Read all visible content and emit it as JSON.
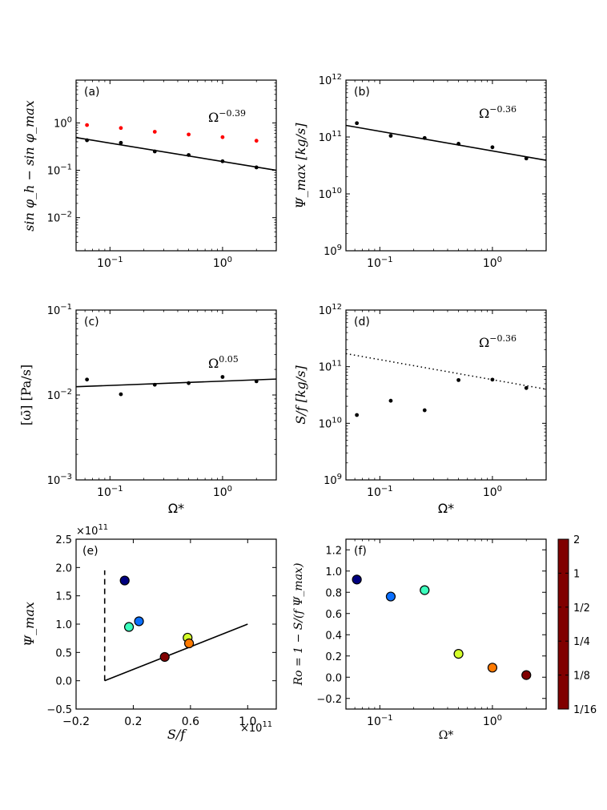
{
  "chart_data": [
    {
      "id": "a",
      "type": "scatter",
      "panel_label": "(a)",
      "ylabel": "sin φ_h − sin φ_max",
      "xlabel": "",
      "xscale": "log",
      "yscale": "log",
      "xlim": [
        0.05,
        3
      ],
      "ylim": [
        0.002,
        8
      ],
      "x_ticks": [
        {
          "v": 0.1,
          "b": "10",
          "e": "−1"
        },
        {
          "v": 1,
          "b": "10",
          "e": "0"
        }
      ],
      "y_ticks": [
        {
          "v": 0.01,
          "b": "10",
          "e": "−2"
        },
        {
          "v": 0.1,
          "b": "10",
          "e": "−1"
        },
        {
          "v": 1,
          "b": "10",
          "e": "0"
        }
      ],
      "annotation": {
        "b": "Ω",
        "e": "−0.39"
      },
      "series": [
        {
          "color": "#ff0000",
          "x": [
            0.0625,
            0.125,
            0.25,
            0.5,
            1,
            2
          ],
          "y": [
            0.9,
            0.78,
            0.65,
            0.57,
            0.5,
            0.42
          ]
        },
        {
          "color": "#000000",
          "x": [
            0.0625,
            0.125,
            0.25,
            0.5,
            1,
            2
          ],
          "y": [
            0.43,
            0.38,
            0.25,
            0.21,
            0.155,
            0.115
          ]
        }
      ],
      "fit_line": {
        "style": "solid",
        "x": [
          0.05,
          3
        ],
        "y": [
          0.49,
          0.1
        ]
      }
    },
    {
      "id": "b",
      "type": "scatter",
      "panel_label": "(b)",
      "ylabel": "Ψ_max [kg/s]",
      "xlabel": "",
      "xscale": "log",
      "yscale": "log",
      "xlim": [
        0.05,
        3
      ],
      "ylim": [
        1000000000.0,
        1000000000000.0
      ],
      "x_ticks": [
        {
          "v": 0.1,
          "b": "10",
          "e": "−1"
        },
        {
          "v": 1,
          "b": "10",
          "e": "0"
        }
      ],
      "y_ticks": [
        {
          "v": 1000000000.0,
          "b": "10",
          "e": "9"
        },
        {
          "v": 10000000000.0,
          "b": "10",
          "e": "10"
        },
        {
          "v": 100000000000.0,
          "b": "10",
          "e": "11"
        },
        {
          "v": 1000000000000.0,
          "b": "10",
          "e": "12"
        }
      ],
      "annotation": {
        "b": "Ω",
        "e": "−0.36"
      },
      "series": [
        {
          "color": "#000000",
          "x": [
            0.0625,
            0.125,
            0.25,
            0.5,
            1,
            2
          ],
          "y": [
            175000000000.0,
            105000000000.0,
            96000000000.0,
            76000000000.0,
            66000000000.0,
            42000000000.0
          ]
        }
      ],
      "fit_line": {
        "style": "solid",
        "x": [
          0.05,
          3
        ],
        "y": [
          160000000000.0,
          39000000000.0
        ]
      }
    },
    {
      "id": "c",
      "type": "scatter",
      "panel_label": "(c)",
      "ylabel": "[ω̄] [Pa/s]",
      "xlabel": "Ω*",
      "xscale": "log",
      "yscale": "log",
      "xlim": [
        0.05,
        3
      ],
      "ylim": [
        0.001,
        0.1
      ],
      "x_ticks": [
        {
          "v": 0.1,
          "b": "10",
          "e": "−1"
        },
        {
          "v": 1,
          "b": "10",
          "e": "0"
        }
      ],
      "y_ticks": [
        {
          "v": 0.001,
          "b": "10",
          "e": "−3"
        },
        {
          "v": 0.01,
          "b": "10",
          "e": "−2"
        },
        {
          "v": 0.1,
          "b": "10",
          "e": "−1"
        }
      ],
      "annotation": {
        "b": "Ω",
        "e": "0.05"
      },
      "series": [
        {
          "color": "#000000",
          "x": [
            0.0625,
            0.125,
            0.25,
            0.5,
            1,
            2
          ],
          "y": [
            0.0152,
            0.0102,
            0.0132,
            0.0138,
            0.0163,
            0.0145
          ]
        }
      ],
      "fit_line": {
        "style": "solid",
        "x": [
          0.05,
          3
        ],
        "y": [
          0.0125,
          0.0154
        ]
      }
    },
    {
      "id": "d",
      "type": "scatter",
      "panel_label": "(d)",
      "ylabel": "S/f [kg/s]",
      "xlabel": "Ω*",
      "xscale": "log",
      "yscale": "log",
      "xlim": [
        0.05,
        3
      ],
      "ylim": [
        1000000000.0,
        1000000000000.0
      ],
      "x_ticks": [
        {
          "v": 0.1,
          "b": "10",
          "e": "−1"
        },
        {
          "v": 1,
          "b": "10",
          "e": "0"
        }
      ],
      "y_ticks": [
        {
          "v": 1000000000.0,
          "b": "10",
          "e": "9"
        },
        {
          "v": 10000000000.0,
          "b": "10",
          "e": "10"
        },
        {
          "v": 100000000000.0,
          "b": "10",
          "e": "11"
        },
        {
          "v": 1000000000000.0,
          "b": "10",
          "e": "12"
        }
      ],
      "annotation": {
        "b": "Ω",
        "e": "−0.36"
      },
      "series": [
        {
          "color": "#000000",
          "x": [
            0.0625,
            0.125,
            0.25,
            0.5,
            1,
            2
          ],
          "y": [
            14000000000.0,
            25000000000.0,
            17000000000.0,
            58000000000.0,
            59000000000.0,
            42000000000.0
          ]
        }
      ],
      "fit_line": {
        "style": "dotted",
        "x": [
          0.05,
          3
        ],
        "y": [
          170000000000.0,
          40000000000.0
        ]
      }
    },
    {
      "id": "e",
      "type": "scatter",
      "panel_label": "(e)",
      "ylabel": "Ψ_max",
      "xlabel": "S/f",
      "xscale": "linear",
      "yscale": "linear",
      "xlim": [
        -0.2,
        1.2
      ],
      "ylim": [
        -0.5,
        2.5
      ],
      "x_ticks": [
        {
          "v": -0.2,
          "t": "−0.2"
        },
        {
          "v": 0.2,
          "t": "0.2"
        },
        {
          "v": 0.6,
          "t": "0.6"
        },
        {
          "v": 1.0,
          "t": "1.0"
        }
      ],
      "y_ticks": [
        {
          "v": -0.5,
          "t": "−0.5"
        },
        {
          "v": 0.0,
          "t": "0.0"
        },
        {
          "v": 0.5,
          "t": "0.5"
        },
        {
          "v": 1.0,
          "t": "1.0"
        },
        {
          "v": 1.5,
          "t": "1.5"
        },
        {
          "v": 2.0,
          "t": "2.0"
        },
        {
          "v": 2.5,
          "t": "2.5"
        }
      ],
      "x_multiplier": {
        "b": "×10",
        "e": "11"
      },
      "y_multiplier": {
        "b": "×10",
        "e": "11"
      },
      "reference_lines": [
        {
          "style": "solid",
          "x": [
            0,
            1.0
          ],
          "y": [
            0,
            1.0
          ]
        },
        {
          "style": "dashed",
          "x": [
            0,
            0
          ],
          "y": [
            0,
            1.95
          ]
        }
      ],
      "points": [
        {
          "x": 0.14,
          "y": 1.77,
          "color": "#00007f"
        },
        {
          "x": 0.17,
          "y": 0.95,
          "color": "#3cffbd"
        },
        {
          "x": 0.24,
          "y": 1.05,
          "color": "#0a6fff"
        },
        {
          "x": 0.58,
          "y": 0.76,
          "color": "#d4ff2a"
        },
        {
          "x": 0.59,
          "y": 0.66,
          "color": "#ff7a00"
        },
        {
          "x": 0.42,
          "y": 0.42,
          "color": "#800000"
        }
      ]
    },
    {
      "id": "f",
      "type": "scatter",
      "panel_label": "(f)",
      "ylabel": "Ro = 1 − S/(f Ψ_max)",
      "xlabel": "Ω*",
      "xscale": "log",
      "yscale": "linear",
      "xlim": [
        0.05,
        3
      ],
      "ylim": [
        -0.3,
        1.3
      ],
      "x_ticks": [
        {
          "v": 0.1,
          "b": "10",
          "e": "−1"
        },
        {
          "v": 1,
          "b": "10",
          "e": "0"
        }
      ],
      "y_ticks": [
        {
          "v": -0.2,
          "t": "−0.2"
        },
        {
          "v": 0.0,
          "t": "0.0"
        },
        {
          "v": 0.2,
          "t": "0.2"
        },
        {
          "v": 0.4,
          "t": "0.4"
        },
        {
          "v": 0.6,
          "t": "0.6"
        },
        {
          "v": 0.8,
          "t": "0.8"
        },
        {
          "v": 1.0,
          "t": "1.0"
        },
        {
          "v": 1.2,
          "t": "1.2"
        }
      ],
      "points": [
        {
          "x": 0.0625,
          "y": 0.92,
          "color": "#00007f"
        },
        {
          "x": 0.125,
          "y": 0.76,
          "color": "#0a6fff"
        },
        {
          "x": 0.25,
          "y": 0.82,
          "color": "#3cffbd"
        },
        {
          "x": 0.5,
          "y": 0.22,
          "color": "#d4ff2a"
        },
        {
          "x": 1.0,
          "y": 0.09,
          "color": "#ff7a00"
        },
        {
          "x": 2.0,
          "y": 0.02,
          "color": "#800000"
        }
      ]
    }
  ],
  "colorbar": {
    "ticks": [
      "2",
      "1",
      "1/2",
      "1/4",
      "1/8",
      "1/16"
    ],
    "colors": [
      "#800000",
      "#ff0000",
      "#ff7a00",
      "#ffe600",
      "#a2ff56",
      "#3cffbd",
      "#00d4ff",
      "#0a6fff",
      "#0000ff",
      "#00007f"
    ]
  }
}
